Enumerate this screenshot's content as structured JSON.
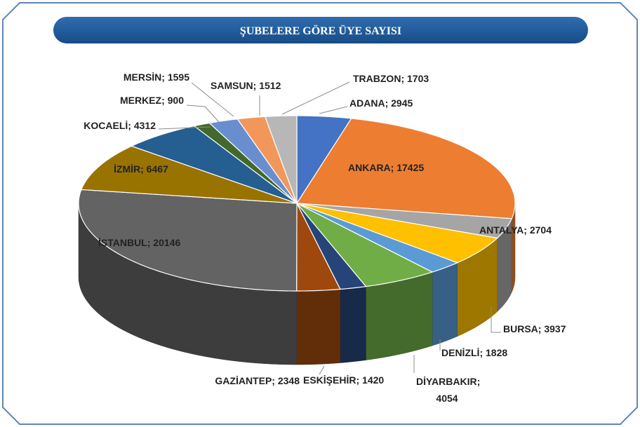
{
  "chart_data": {
    "type": "pie3d",
    "title": "ŞUBELERE GÖRE ÜYE SAYISI",
    "label_separator": "; ",
    "categories": [
      "ADANA",
      "ANKARA",
      "ANTALYA",
      "BURSA",
      "DENİZLİ",
      "DİYARBAKIR",
      "ESKİŞEHİR",
      "GAZİANTEP",
      "İSTANBUL",
      "İZMİR",
      "KOCAELİ",
      "MERKEZ",
      "MERSİN",
      "SAMSUN",
      "TRABZON"
    ],
    "values": [
      2945,
      17425,
      2704,
      3937,
      1828,
      4054,
      1420,
      2348,
      20146,
      6467,
      4312,
      900,
      1595,
      1512,
      1703
    ],
    "colors": [
      "#4472c4",
      "#ed7d31",
      "#a5a5a5",
      "#ffc000",
      "#5b9bd5",
      "#70ad47",
      "#264478",
      "#9e480e",
      "#636363",
      "#997300",
      "#255e91",
      "#43682b",
      "#698ed0",
      "#f1975a",
      "#b7b7b7"
    ]
  }
}
